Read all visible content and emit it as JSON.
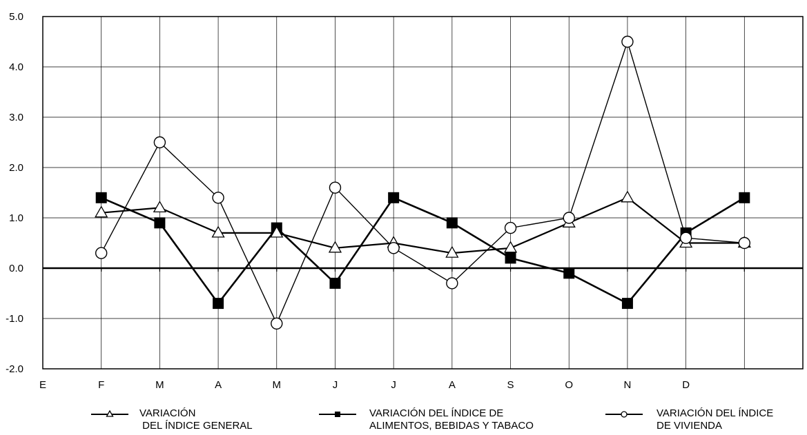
{
  "chart_data": {
    "type": "line",
    "categories": [
      "E",
      "F",
      "M",
      "A",
      "M",
      "J",
      "J",
      "A",
      "S",
      "O",
      "N",
      "D",
      ""
    ],
    "ylim": [
      -2.0,
      5.0
    ],
    "yticks": [
      "5.0",
      "4.0",
      "3.0",
      "2.0",
      "1.0",
      "0.0",
      "-1.0",
      "-2.0"
    ],
    "ytick_values": [
      5,
      4,
      3,
      2,
      1,
      0,
      -1,
      -2
    ],
    "grid": true,
    "legend_position": "bottom",
    "series": [
      {
        "name": "VARIACIÓN\n DEL ÍNDICE GENERAL",
        "marker": "triangle-open",
        "values": [
          null,
          1.1,
          1.2,
          0.7,
          0.7,
          0.4,
          0.5,
          0.3,
          0.4,
          0.9,
          1.4,
          0.5,
          0.5
        ]
      },
      {
        "name": "VARIACIÓN DEL ÍNDICE DE\nALIMENTOS, BEBIDAS Y TABACO",
        "marker": "square-filled",
        "values": [
          null,
          1.4,
          0.9,
          -0.7,
          0.8,
          -0.3,
          1.4,
          0.9,
          0.2,
          -0.1,
          -0.7,
          0.7,
          1.4
        ]
      },
      {
        "name": "VARIACIÓN DEL ÍNDICE\nDE VIVIENDA",
        "marker": "circle-open",
        "values": [
          null,
          0.3,
          2.5,
          1.4,
          -1.1,
          1.6,
          0.4,
          -0.3,
          0.8,
          1.0,
          4.5,
          0.6,
          0.5
        ]
      }
    ]
  }
}
